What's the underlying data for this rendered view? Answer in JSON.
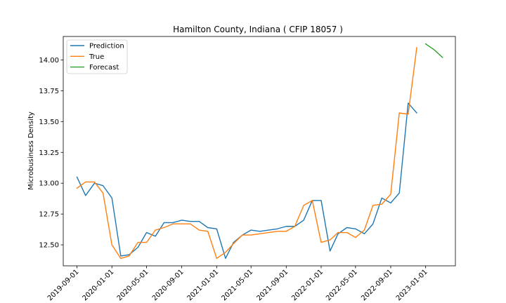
{
  "chart_data": {
    "type": "line",
    "title": "Hamilton County, Indiana ( CFIP 18057 )",
    "xlabel": "",
    "ylabel": "Microbusiness Density",
    "ylim": [
      12.33,
      14.19
    ],
    "xlim": [
      "2019-07-15",
      "2023-04-15"
    ],
    "y_ticks": [
      12.5,
      12.75,
      13.0,
      13.25,
      13.5,
      13.75,
      14.0
    ],
    "y_tick_labels": [
      "12.50",
      "12.75",
      "13.00",
      "13.25",
      "13.50",
      "13.75",
      "14.00"
    ],
    "x_ticks": [
      "2019-09-01",
      "2020-01-01",
      "2020-05-01",
      "2020-09-01",
      "2021-01-01",
      "2021-05-01",
      "2021-09-01",
      "2022-01-01",
      "2022-05-01",
      "2022-09-01",
      "2023-01-01"
    ],
    "grid": false,
    "legend_position": "top-left",
    "series": [
      {
        "name": "Prediction",
        "color": "#1f77b4",
        "x": [
          "2019-09-01",
          "2019-10-01",
          "2019-11-01",
          "2019-12-01",
          "2020-01-01",
          "2020-02-01",
          "2020-03-01",
          "2020-04-01",
          "2020-05-01",
          "2020-06-01",
          "2020-07-01",
          "2020-08-01",
          "2020-09-01",
          "2020-10-01",
          "2020-11-01",
          "2020-12-01",
          "2021-01-01",
          "2021-02-01",
          "2021-03-01",
          "2021-04-01",
          "2021-05-01",
          "2021-06-01",
          "2021-07-01",
          "2021-08-01",
          "2021-09-01",
          "2021-10-01",
          "2021-11-01",
          "2021-12-01",
          "2022-01-01",
          "2022-02-01",
          "2022-03-01",
          "2022-04-01",
          "2022-05-01",
          "2022-06-01",
          "2022-07-01",
          "2022-08-01",
          "2022-09-01",
          "2022-10-01",
          "2022-11-01",
          "2022-12-01"
        ],
        "values": [
          13.05,
          12.9,
          13.0,
          12.98,
          12.88,
          12.41,
          12.42,
          12.48,
          12.6,
          12.57,
          12.68,
          12.68,
          12.7,
          12.69,
          12.69,
          12.64,
          12.63,
          12.39,
          12.52,
          12.58,
          12.62,
          12.61,
          12.62,
          12.63,
          12.65,
          12.65,
          12.7,
          12.86,
          12.86,
          12.45,
          12.59,
          12.64,
          12.63,
          12.59,
          12.67,
          12.88,
          12.84,
          12.92,
          13.65,
          13.57
        ]
      },
      {
        "name": "True",
        "color": "#ff7f0e",
        "x": [
          "2019-09-01",
          "2019-10-01",
          "2019-11-01",
          "2019-12-01",
          "2020-01-01",
          "2020-02-01",
          "2020-03-01",
          "2020-04-01",
          "2020-05-01",
          "2020-06-01",
          "2020-07-01",
          "2020-08-01",
          "2020-09-01",
          "2020-10-01",
          "2020-11-01",
          "2020-12-01",
          "2021-01-01",
          "2021-02-01",
          "2021-03-01",
          "2021-04-01",
          "2021-05-01",
          "2021-06-01",
          "2021-07-01",
          "2021-08-01",
          "2021-09-01",
          "2021-10-01",
          "2021-11-01",
          "2021-12-01",
          "2022-01-01",
          "2022-02-01",
          "2022-03-01",
          "2022-04-01",
          "2022-05-01",
          "2022-06-01",
          "2022-07-01",
          "2022-08-01",
          "2022-09-01",
          "2022-10-01",
          "2022-11-01",
          "2022-12-01"
        ],
        "values": [
          12.96,
          13.01,
          13.01,
          12.92,
          12.5,
          12.39,
          12.41,
          12.52,
          12.52,
          12.62,
          12.64,
          12.67,
          12.67,
          12.67,
          12.62,
          12.61,
          12.39,
          12.44,
          12.51,
          12.58,
          12.58,
          12.59,
          12.6,
          12.61,
          12.61,
          12.65,
          12.82,
          12.86,
          12.52,
          12.54,
          12.6,
          12.6,
          12.56,
          12.62,
          12.82,
          12.83,
          12.91,
          13.57,
          13.56,
          14.1
        ]
      },
      {
        "name": "Forecast",
        "color": "#2ca02c",
        "x": [
          "2023-01-01",
          "2023-02-01",
          "2023-03-01"
        ],
        "values": [
          14.13,
          14.08,
          14.02
        ]
      }
    ]
  }
}
